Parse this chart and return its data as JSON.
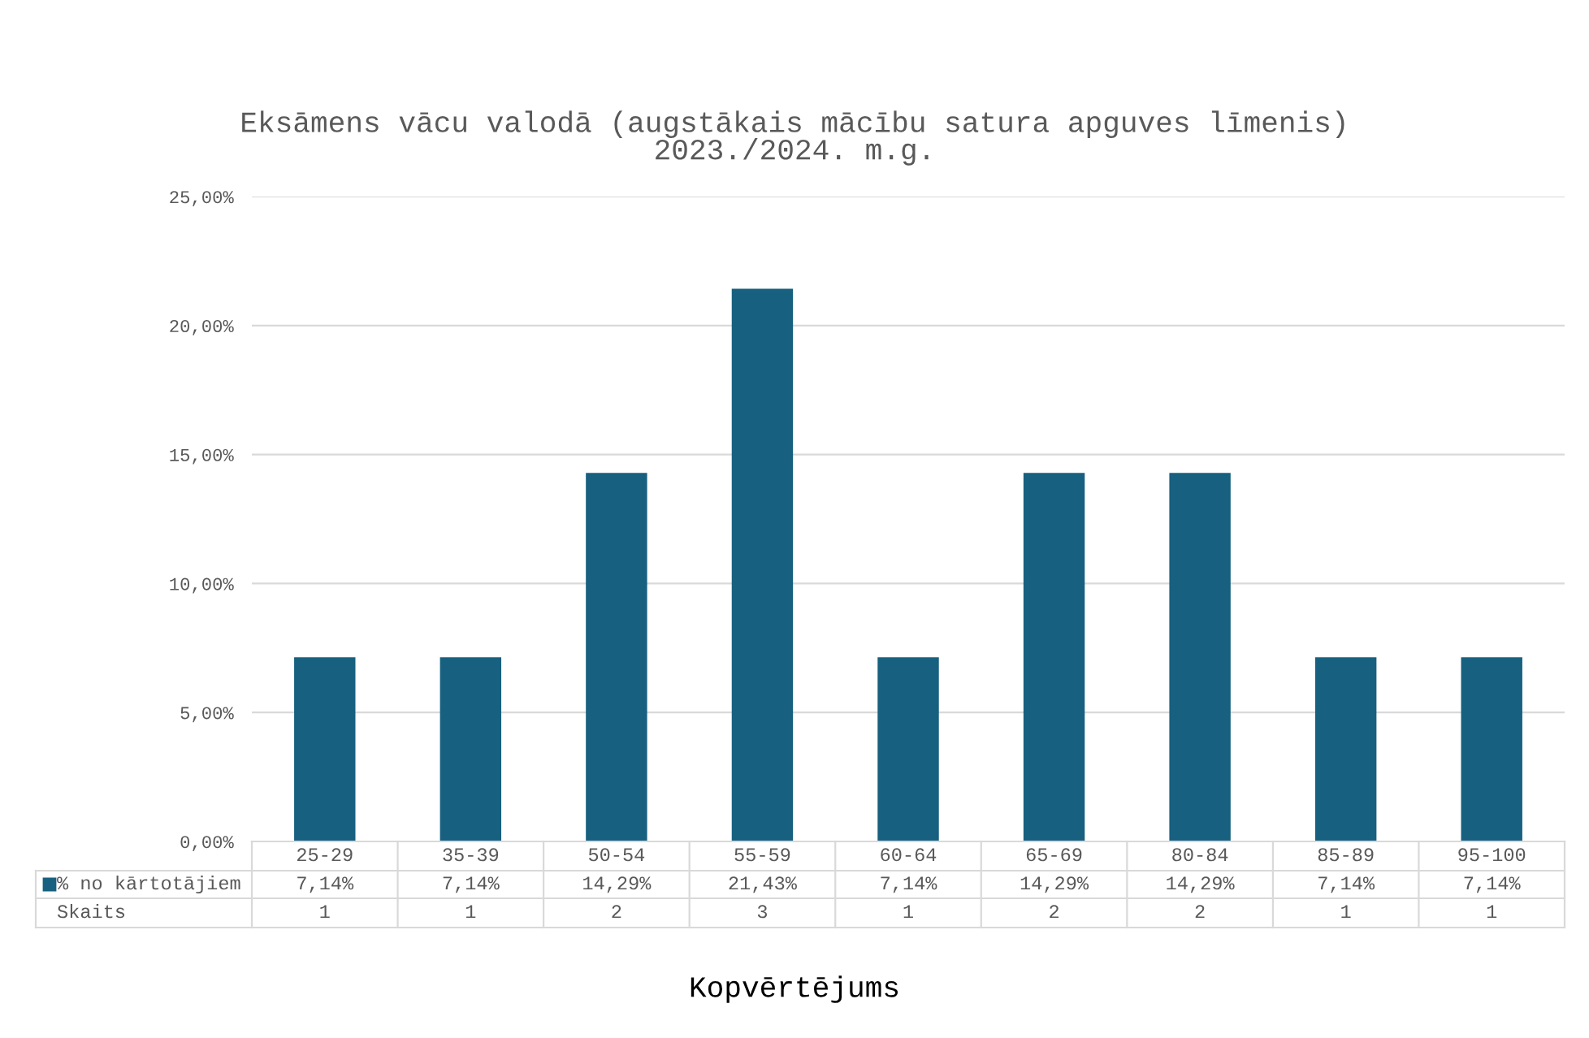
{
  "chart_data": {
    "type": "bar",
    "title": "Eksāmens vācu valodā (augstākais mācību satura apguves līmenis)\n2023./2024. m.g.",
    "xlabel": "Kopvērtējums",
    "categories": [
      "25-29",
      "35-39",
      "50-54",
      "55-59",
      "60-64",
      "65-69",
      "80-84",
      "85-89",
      "95-100"
    ],
    "series": [
      {
        "name": "% no kārtotājiem",
        "color": "#17607f",
        "values": [
          7.14,
          7.14,
          14.29,
          21.43,
          7.14,
          14.29,
          14.29,
          7.14,
          7.14
        ],
        "value_labels": [
          "7,14%",
          "7,14%",
          "14,29%",
          "21,43%",
          "7,14%",
          "14,29%",
          "14,29%",
          "7,14%",
          "7,14%"
        ]
      }
    ],
    "annotations": [
      "Skaits",
      "1",
      "1",
      "2",
      "3",
      "1",
      "2",
      "2",
      "1",
      "1"
    ],
    "ylim": [
      0,
      25
    ],
    "yticks": [
      {
        "value": 0,
        "label": "0,00%"
      },
      {
        "value": 5,
        "label": "5,00%"
      },
      {
        "value": 10,
        "label": "10,00%"
      },
      {
        "value": 15,
        "label": "15,00%"
      },
      {
        "value": 20,
        "label": "20,00%"
      },
      {
        "value": 25,
        "label": "25,00%"
      }
    ],
    "grid": "y",
    "legend": "bottom"
  }
}
